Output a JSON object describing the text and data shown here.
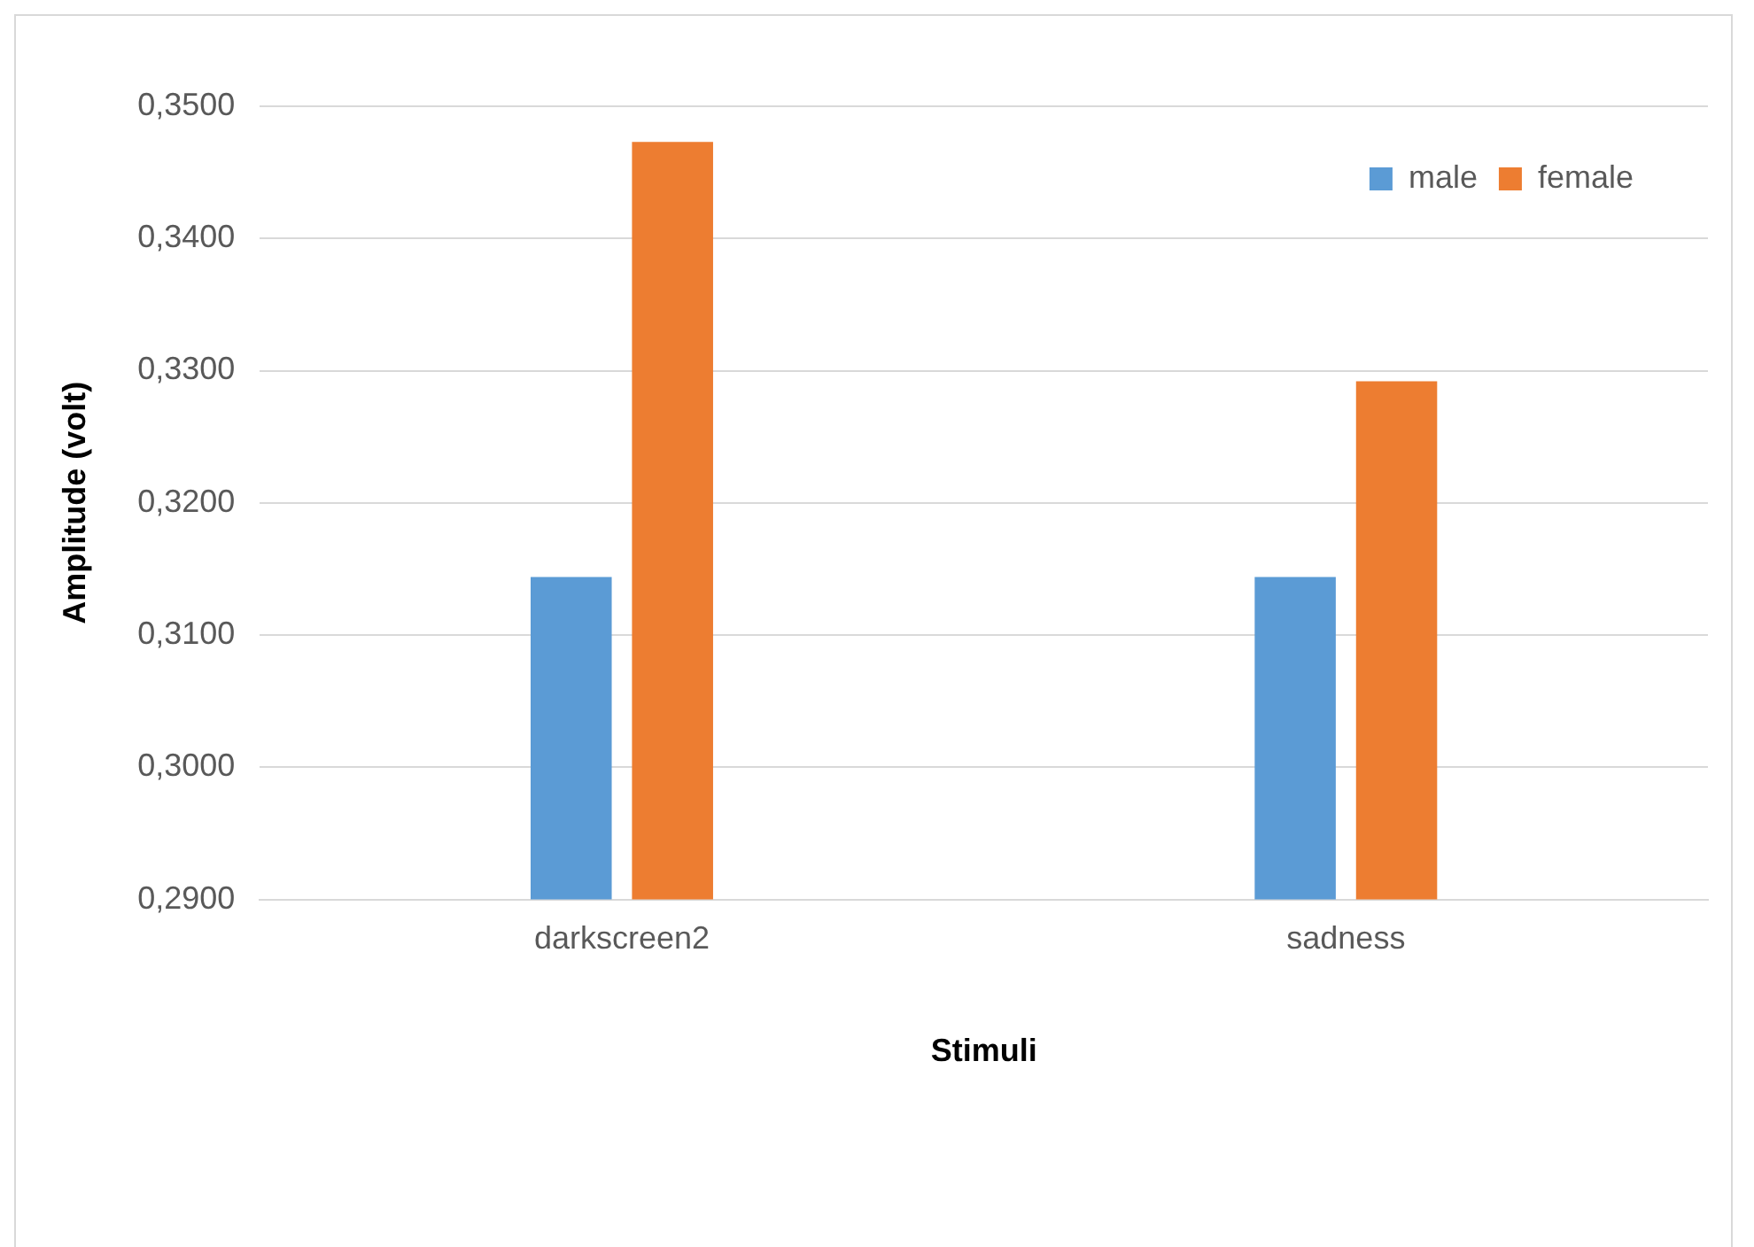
{
  "chart_data": {
    "type": "bar",
    "xlabel": "Stimuli",
    "ylabel": "Amplitude (volt)",
    "categories": [
      "darkscreen2",
      "sadness"
    ],
    "series": [
      {
        "name": "male",
        "color": "#5b9bd5",
        "values": [
          0.3144,
          0.3144
        ]
      },
      {
        "name": "female",
        "color": "#ed7d31",
        "values": [
          0.3473,
          0.3292
        ]
      }
    ],
    "ylim": [
      0.29,
      0.35
    ],
    "yticks": [
      {
        "value": 0.29,
        "label": "0,2900"
      },
      {
        "value": 0.3,
        "label": "0,3000"
      },
      {
        "value": 0.31,
        "label": "0,3100"
      },
      {
        "value": 0.32,
        "label": "0,3200"
      },
      {
        "value": 0.33,
        "label": "0,3300"
      },
      {
        "value": 0.34,
        "label": "0,3400"
      },
      {
        "value": 0.35,
        "label": "0,3500"
      }
    ],
    "grid": "y",
    "legend": "top right"
  }
}
